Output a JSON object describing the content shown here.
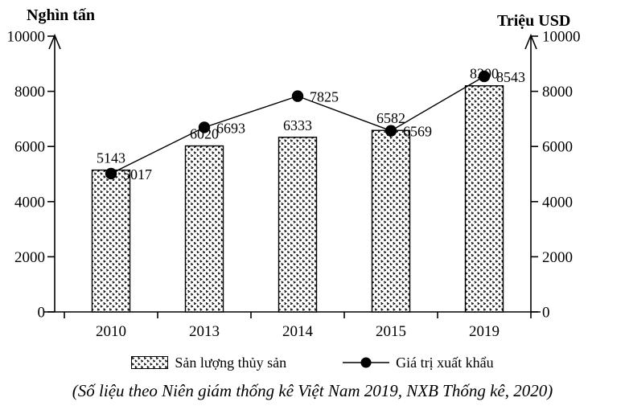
{
  "figure": {
    "left_axis_title": "Nghìn tấn",
    "right_axis_title": "Triệu USD",
    "caption": "(Số liệu theo Niên giám thống kê Việt Nam 2019, NXB Thống kê, 2020)"
  },
  "legend": {
    "bars_label": "Sản lượng thủy sản",
    "line_label": "Giá trị xuất khẩu"
  },
  "chart_data": {
    "type": "bar",
    "subtype": "bar-and-line-combo",
    "categories": [
      "2010",
      "2013",
      "2014",
      "2015",
      "2019"
    ],
    "series": [
      {
        "name": "Sản lượng thủy sản",
        "type": "bar",
        "axis": "left",
        "unit": "nghìn tấn",
        "values": [
          5143,
          6020,
          6333,
          6582,
          8200
        ]
      },
      {
        "name": "Giá trị xuất khẩu",
        "type": "line",
        "axis": "right",
        "unit": "triệu USD",
        "values": [
          5017,
          6693,
          7825,
          6569,
          8543
        ]
      }
    ],
    "left_axis": {
      "title": "Nghìn tấn",
      "min": 0,
      "max": 10000,
      "ticks": [
        0,
        2000,
        4000,
        6000,
        8000,
        10000
      ]
    },
    "right_axis": {
      "title": "Triệu USD",
      "min": 0,
      "max": 10000,
      "ticks": [
        0,
        2000,
        4000,
        6000,
        8000,
        10000
      ]
    },
    "grid": false,
    "legend_position": "bottom",
    "colors": {
      "stroke": "#000000",
      "bar_fill": "#ffffff",
      "marker": "#000000",
      "background": "#ffffff"
    }
  }
}
